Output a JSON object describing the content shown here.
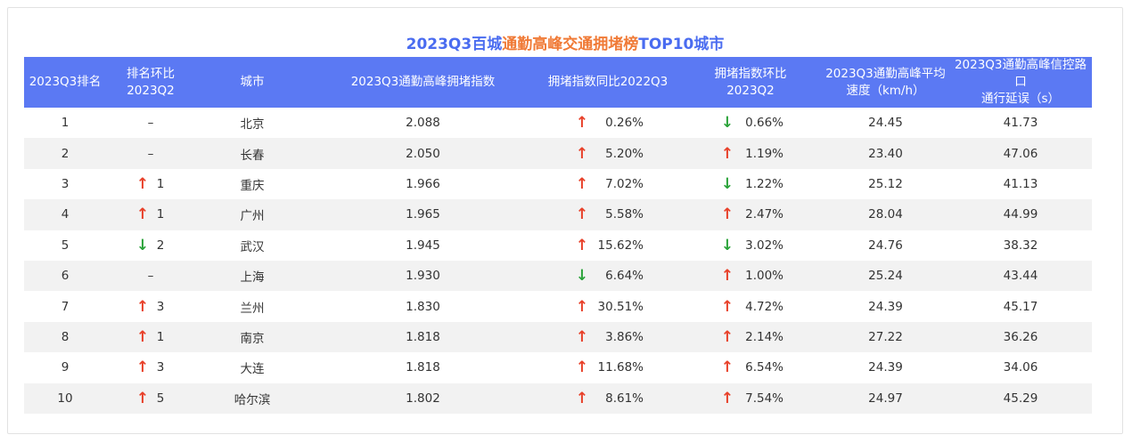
{
  "title": {
    "part1": "2023Q3百城",
    "part2": "通勤高峰交通拥堵榜",
    "part3": "TOP10城市"
  },
  "colors": {
    "title_blue": "#4a6cf0",
    "title_orange": "#f07a36",
    "header_bg": "#5b79f3",
    "up_arrow": "#e8412a",
    "down_arrow": "#2ba33a",
    "stripe": "#f2f2f2"
  },
  "columns": [
    "2023Q3排名",
    "排名环比\n2023Q2",
    "城市",
    "2023Q3通勤高峰拥堵指数",
    "拥堵指数同比2022Q3",
    "拥堵指数环比\n2023Q2",
    "2023Q3通勤高峰平均\n速度（km/h）",
    "2023Q3通勤高峰信控路口\n通行延误（s）"
  ],
  "rows": [
    {
      "rank": "1",
      "rank_change": {
        "dir": "none",
        "text": "–"
      },
      "city": "北京",
      "index": "2.088",
      "yoy": {
        "dir": "up",
        "text": "0.26%"
      },
      "mom": {
        "dir": "down",
        "text": "0.66%"
      },
      "speed": "24.45",
      "delay": "41.73"
    },
    {
      "rank": "2",
      "rank_change": {
        "dir": "none",
        "text": "–"
      },
      "city": "长春",
      "index": "2.050",
      "yoy": {
        "dir": "up",
        "text": "5.20%"
      },
      "mom": {
        "dir": "up",
        "text": "1.19%"
      },
      "speed": "23.40",
      "delay": "47.06"
    },
    {
      "rank": "3",
      "rank_change": {
        "dir": "up",
        "text": "1"
      },
      "city": "重庆",
      "index": "1.966",
      "yoy": {
        "dir": "up",
        "text": "7.02%"
      },
      "mom": {
        "dir": "down",
        "text": "1.22%"
      },
      "speed": "25.12",
      "delay": "41.13"
    },
    {
      "rank": "4",
      "rank_change": {
        "dir": "up",
        "text": "1"
      },
      "city": "广州",
      "index": "1.965",
      "yoy": {
        "dir": "up",
        "text": "5.58%"
      },
      "mom": {
        "dir": "up",
        "text": "2.47%"
      },
      "speed": "28.04",
      "delay": "44.99"
    },
    {
      "rank": "5",
      "rank_change": {
        "dir": "down",
        "text": "2"
      },
      "city": "武汉",
      "index": "1.945",
      "yoy": {
        "dir": "up",
        "text": "15.62%"
      },
      "mom": {
        "dir": "down",
        "text": "3.02%"
      },
      "speed": "24.76",
      "delay": "38.32"
    },
    {
      "rank": "6",
      "rank_change": {
        "dir": "none",
        "text": "–"
      },
      "city": "上海",
      "index": "1.930",
      "yoy": {
        "dir": "down",
        "text": "6.64%"
      },
      "mom": {
        "dir": "up",
        "text": "1.00%"
      },
      "speed": "25.24",
      "delay": "43.44"
    },
    {
      "rank": "7",
      "rank_change": {
        "dir": "up",
        "text": "3"
      },
      "city": "兰州",
      "index": "1.830",
      "yoy": {
        "dir": "up",
        "text": "30.51%"
      },
      "mom": {
        "dir": "up",
        "text": "4.72%"
      },
      "speed": "24.39",
      "delay": "45.17"
    },
    {
      "rank": "8",
      "rank_change": {
        "dir": "up",
        "text": "1"
      },
      "city": "南京",
      "index": "1.818",
      "yoy": {
        "dir": "up",
        "text": "3.86%"
      },
      "mom": {
        "dir": "up",
        "text": "2.14%"
      },
      "speed": "27.22",
      "delay": "36.26"
    },
    {
      "rank": "9",
      "rank_change": {
        "dir": "up",
        "text": "3"
      },
      "city": "大连",
      "index": "1.818",
      "yoy": {
        "dir": "up",
        "text": "11.68%"
      },
      "mom": {
        "dir": "up",
        "text": "6.54%"
      },
      "speed": "24.39",
      "delay": "34.06"
    },
    {
      "rank": "10",
      "rank_change": {
        "dir": "up",
        "text": "5"
      },
      "city": "哈尔滨",
      "index": "1.802",
      "yoy": {
        "dir": "up",
        "text": "8.61%"
      },
      "mom": {
        "dir": "up",
        "text": "7.54%"
      },
      "speed": "24.97",
      "delay": "45.29"
    }
  ],
  "icons": {
    "up": "arrow-up-icon",
    "down": "arrow-down-icon"
  }
}
